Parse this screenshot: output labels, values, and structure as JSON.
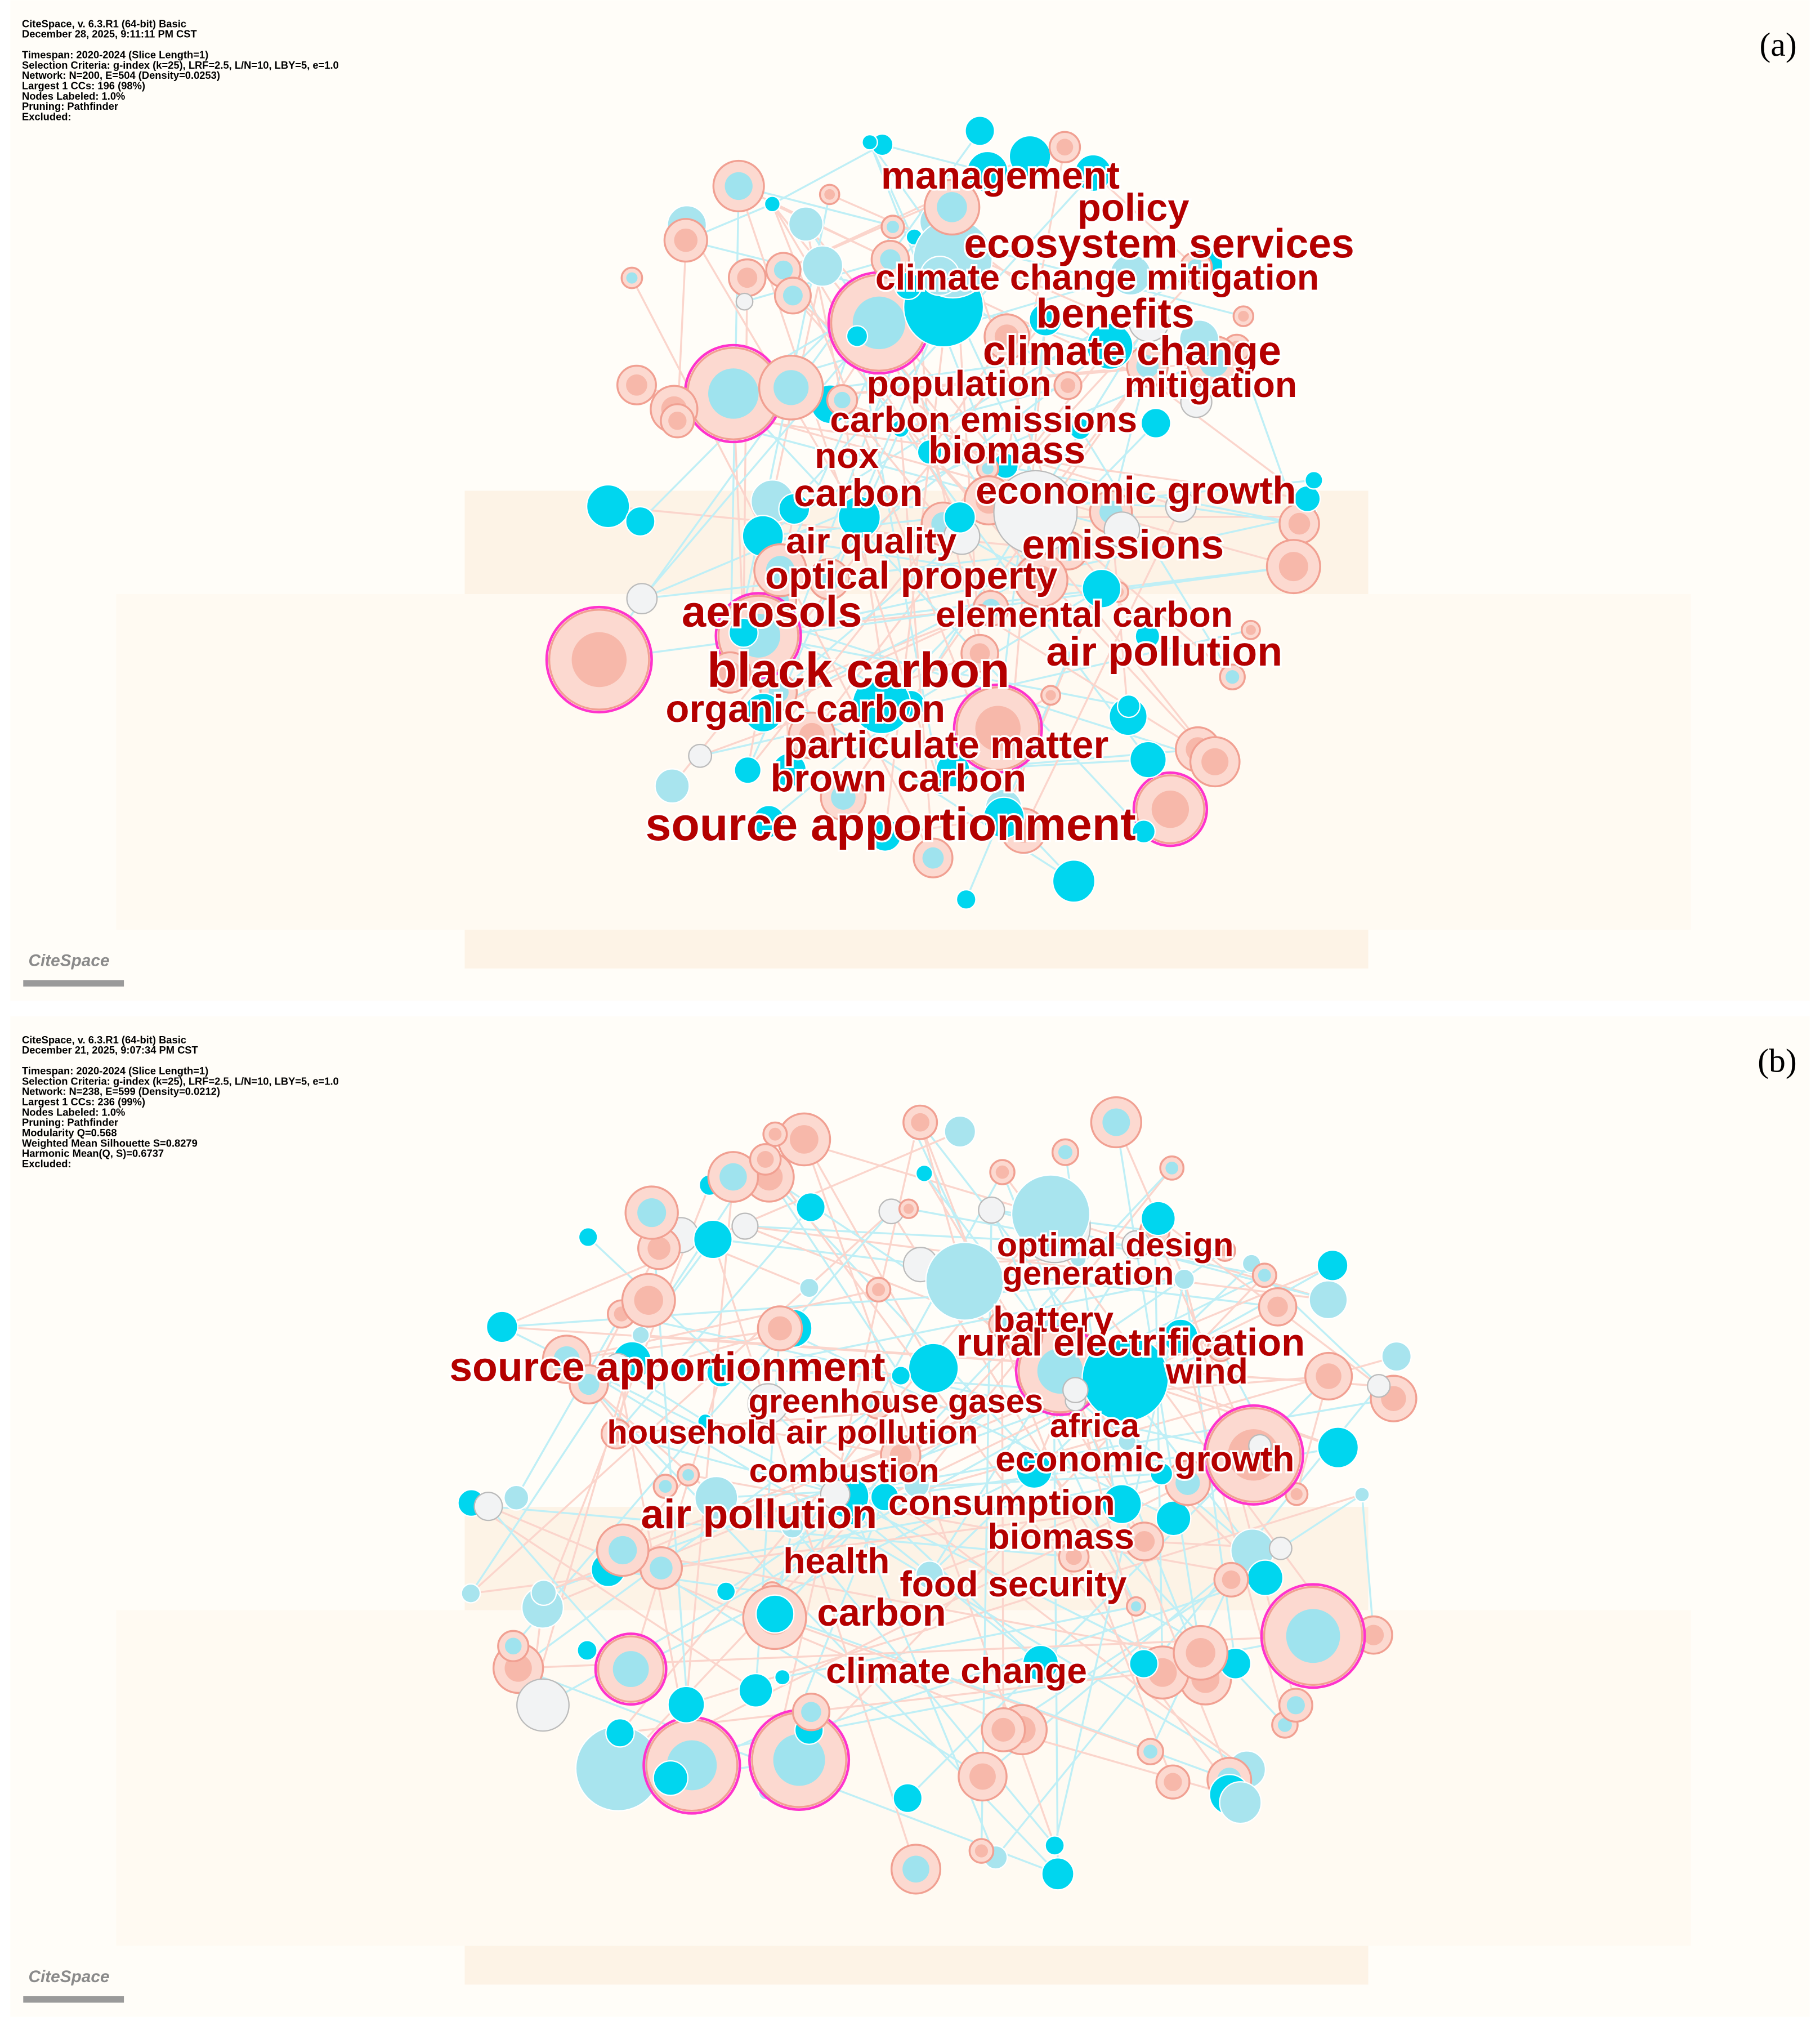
{
  "panels": [
    {
      "label": "(a)",
      "header": [
        "CiteSpace, v. 6.3.R1 (64-bit) Basic",
        "December 28, 2025, 9:11:11 PM CST"
      ],
      "details": [
        "Timespan: 2020-2024 (Slice Length=1)",
        "Selection Criteria: g-index (k=25), LRF=2.5, L/N=10, LBY=5, e=1.0",
        "Network: N=200, E=504 (Density=0.0253)",
        "Largest 1 CCs: 196 (98%)",
        "Nodes Labeled: 1.0%",
        "Pruning: Pathfinder",
        "Excluded:"
      ],
      "logo": "CiteSpace",
      "keywords": [
        "management",
        "policy",
        "ecosystem services",
        "climate change mitigation",
        "benefits",
        "climate change",
        "population",
        "mitigation",
        "carbon emissions",
        "nox",
        "biomass",
        "carbon",
        "economic growth",
        "air quality",
        "emissions",
        "optical property",
        "aerosols",
        "elemental carbon",
        "air pollution",
        "black carbon",
        "organic carbon",
        "particulate matter",
        "brown carbon",
        "source apportionment"
      ]
    },
    {
      "label": "(b)",
      "header": [
        "CiteSpace, v. 6.3.R1 (64-bit) Basic",
        "December 21, 2025, 9:07:34 PM CST"
      ],
      "details": [
        "Timespan: 2020-2024 (Slice Length=1)",
        "Selection Criteria: g-index (k=25), LRF=2.5, L/N=10, LBY=5, e=1.0",
        "Network: N=238, E=599 (Density=0.0212)",
        "Largest 1 CCs: 236 (99%)",
        "Nodes Labeled: 1.0%",
        "Pruning: Pathfinder",
        "Modularity Q=0.568",
        "Weighted Mean Silhouette S=0.8279",
        "Harmonic Mean(Q, S)=0.6737",
        "Excluded:"
      ],
      "logo": "CiteSpace",
      "keywords": [
        "optimal design",
        "generation",
        "battery",
        "rural electrification",
        "source apportionment",
        "wind",
        "greenhouse gases",
        "africa",
        "household air pollution",
        "economic growth",
        "combustion",
        "consumption",
        "air pollution",
        "biomass",
        "health",
        "food security",
        "carbon",
        "climate change"
      ]
    }
  ]
}
